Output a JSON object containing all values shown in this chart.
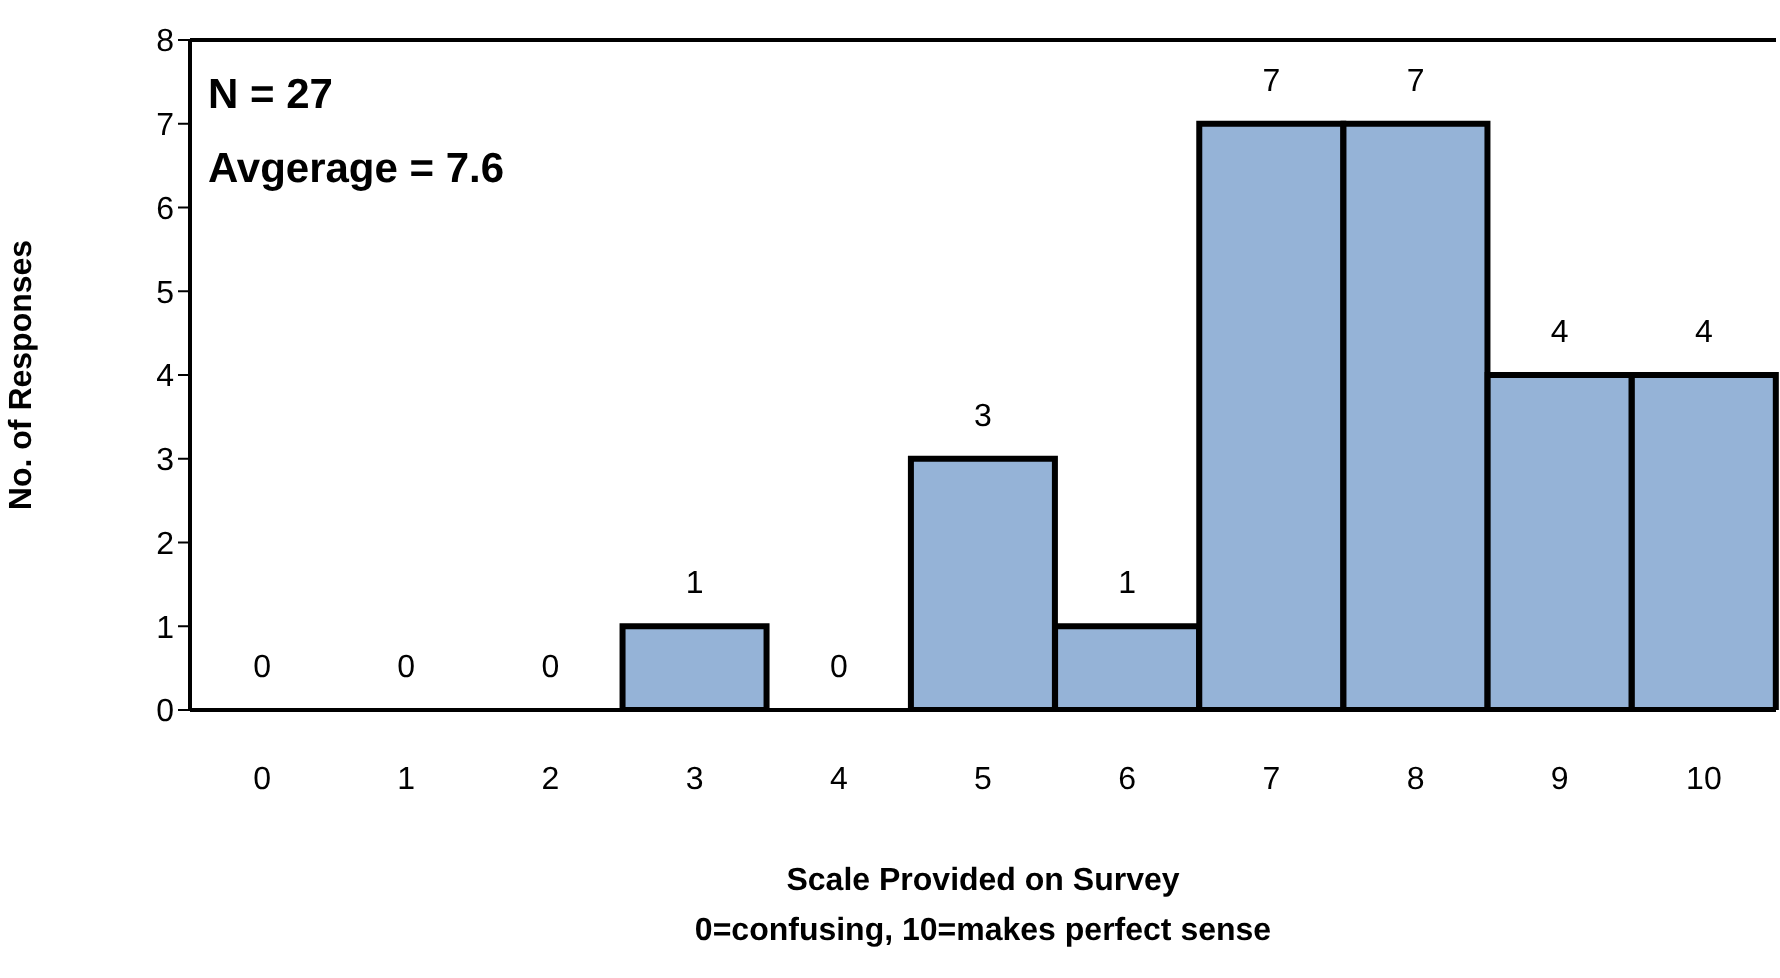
{
  "chart_data": {
    "type": "bar",
    "categories": [
      "0",
      "1",
      "2",
      "3",
      "4",
      "5",
      "6",
      "7",
      "8",
      "9",
      "10"
    ],
    "values": [
      0,
      0,
      0,
      1,
      0,
      3,
      1,
      7,
      7,
      4,
      4
    ],
    "color": "#95b3d7",
    "xlabel": "Scale Provided on Survey\n0=confusing, 10=makes perfect sense",
    "ylabel": "No. of Responses",
    "ylim": [
      0,
      8
    ],
    "yticks": [
      0,
      1,
      2,
      3,
      4,
      5,
      6,
      7,
      8
    ],
    "annotations": [
      "N = 27",
      "Avgerage = 7.6"
    ],
    "data_labels": true,
    "grid": false
  }
}
